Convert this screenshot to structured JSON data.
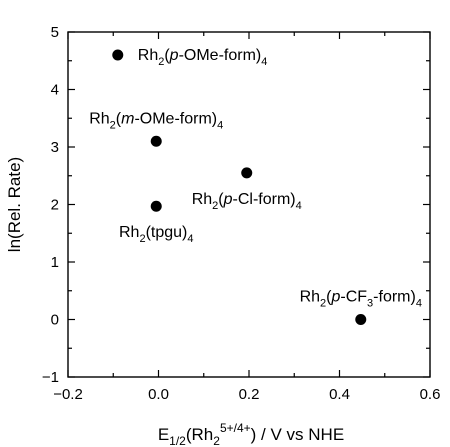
{
  "chart_data": {
    "type": "scatter",
    "title": "",
    "xlabel": {
      "parts": [
        {
          "text": "E",
          "style": "normal"
        },
        {
          "text": "1/2",
          "style": "sub"
        },
        {
          "text": "(Rh",
          "style": "normal"
        },
        {
          "text": "2",
          "style": "sub"
        },
        {
          "text": "5+/4+",
          "style": "sup"
        },
        {
          "text": ") / V vs NHE",
          "style": "normal"
        }
      ]
    },
    "ylabel": "ln(Rel. Rate)",
    "xlim": [
      -0.2,
      0.6
    ],
    "ylim": [
      -1,
      5
    ],
    "xticks": [
      -0.2,
      0,
      0.2,
      0.4,
      0.6
    ],
    "xtick_labels": [
      "−0.2",
      "0.0",
      "0.2",
      "0.4",
      "0.6"
    ],
    "yticks": [
      -1,
      0,
      1,
      2,
      3,
      4,
      5
    ],
    "ytick_labels": [
      "−1",
      "0",
      "1",
      "2",
      "3",
      "4",
      "5"
    ],
    "grid": false,
    "points": [
      {
        "x": -0.09,
        "y": 4.6,
        "label_anchor": "right",
        "label_parts": [
          {
            "text": "Rh",
            "style": "normal"
          },
          {
            "text": "2",
            "style": "sub"
          },
          {
            "text": "(",
            "style": "normal"
          },
          {
            "text": "p",
            "style": "italic"
          },
          {
            "text": "-OMe-form)",
            "style": "normal"
          },
          {
            "text": "4",
            "style": "sub"
          }
        ]
      },
      {
        "x": -0.005,
        "y": 3.1,
        "label_anchor": "above",
        "label_parts": [
          {
            "text": "Rh",
            "style": "normal"
          },
          {
            "text": "2",
            "style": "sub"
          },
          {
            "text": "(",
            "style": "normal"
          },
          {
            "text": "m",
            "style": "italic"
          },
          {
            "text": "-OMe-form)",
            "style": "normal"
          },
          {
            "text": "4",
            "style": "sub"
          }
        ]
      },
      {
        "x": 0.195,
        "y": 2.55,
        "label_anchor": "below",
        "label_parts": [
          {
            "text": "Rh",
            "style": "normal"
          },
          {
            "text": "2",
            "style": "sub"
          },
          {
            "text": "(",
            "style": "normal"
          },
          {
            "text": "p",
            "style": "italic"
          },
          {
            "text": "-Cl-form)",
            "style": "normal"
          },
          {
            "text": "4",
            "style": "sub"
          }
        ]
      },
      {
        "x": -0.005,
        "y": 1.97,
        "label_anchor": "below",
        "label_parts": [
          {
            "text": "Rh",
            "style": "normal"
          },
          {
            "text": "2",
            "style": "sub"
          },
          {
            "text": "(tpgu)",
            "style": "normal"
          },
          {
            "text": "4",
            "style": "sub"
          }
        ]
      },
      {
        "x": 0.447,
        "y": 0.0,
        "label_anchor": "above",
        "label_parts": [
          {
            "text": "Rh",
            "style": "normal"
          },
          {
            "text": "2",
            "style": "sub"
          },
          {
            "text": "(",
            "style": "normal"
          },
          {
            "text": "p",
            "style": "italic"
          },
          {
            "text": "-CF",
            "style": "normal"
          },
          {
            "text": "3",
            "style": "sub"
          },
          {
            "text": "-form)",
            "style": "normal"
          },
          {
            "text": "4",
            "style": "sub"
          }
        ]
      }
    ]
  }
}
